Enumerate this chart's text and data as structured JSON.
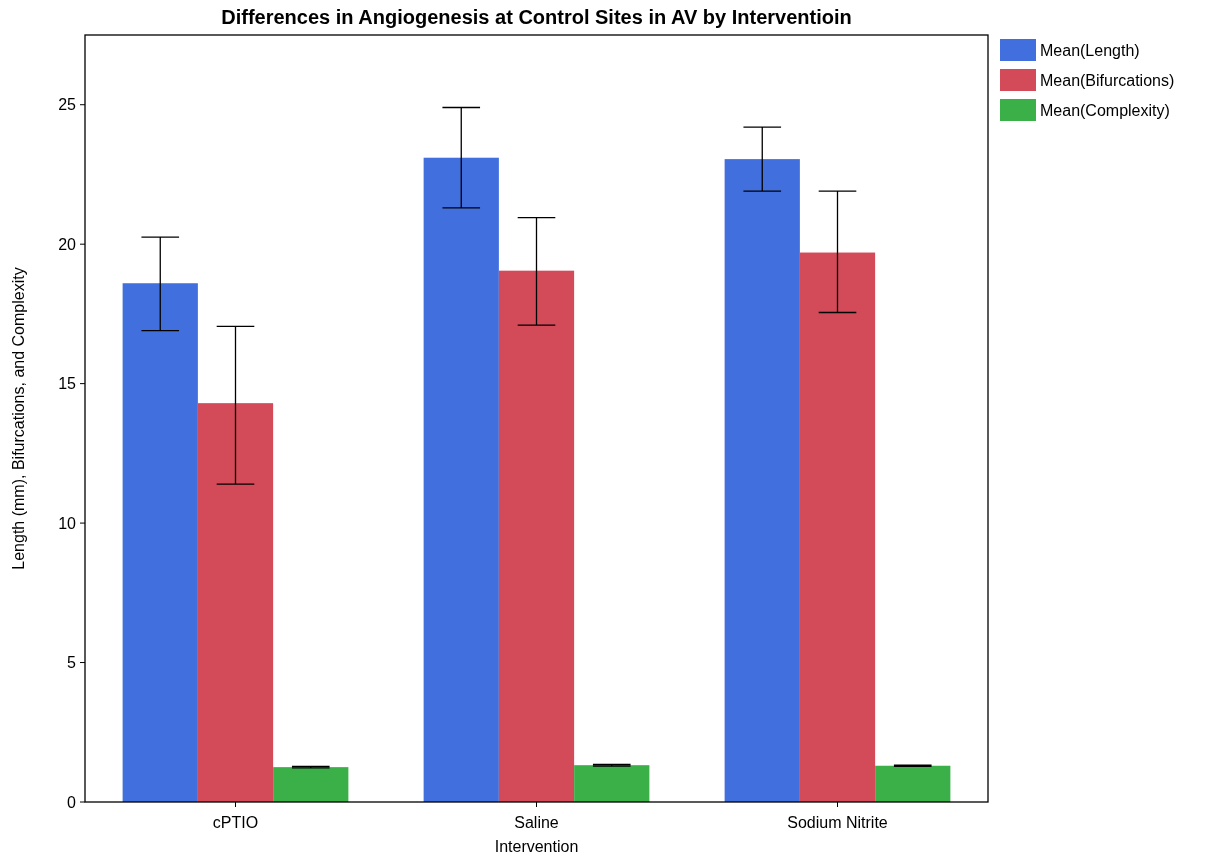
{
  "chart_data": {
    "type": "bar",
    "title": "Differences in Angiogenesis at Control Sites in AV by Interventioin",
    "xlabel": "Intervention",
    "ylabel": "Length (mm), Bifurcations, and Complexity",
    "categories": [
      "cPTIO",
      "Saline",
      "Sodium Nitrite"
    ],
    "series": [
      {
        "name": "Mean(Length)",
        "color": "#4170de",
        "values": [
          18.6,
          23.1,
          23.05
        ],
        "errors": [
          [
            16.9,
            20.25
          ],
          [
            21.3,
            24.9
          ],
          [
            21.9,
            24.2
          ]
        ]
      },
      {
        "name": "Mean(Bifurcations)",
        "color": "#d34a58",
        "values": [
          14.3,
          19.05,
          19.7
        ],
        "errors": [
          [
            11.4,
            17.05
          ],
          [
            17.1,
            20.95
          ],
          [
            17.55,
            21.9
          ]
        ]
      },
      {
        "name": "Mean(Complexity)",
        "color": "#3bb049",
        "values": [
          1.25,
          1.32,
          1.3
        ],
        "errors": [
          [
            1.22,
            1.28
          ],
          [
            1.29,
            1.35
          ],
          [
            1.28,
            1.32
          ]
        ]
      }
    ],
    "ylim": [
      0,
      27.5
    ],
    "yticks": [
      0,
      5,
      10,
      15,
      20,
      25
    ],
    "legend": "top right",
    "grid": false
  }
}
